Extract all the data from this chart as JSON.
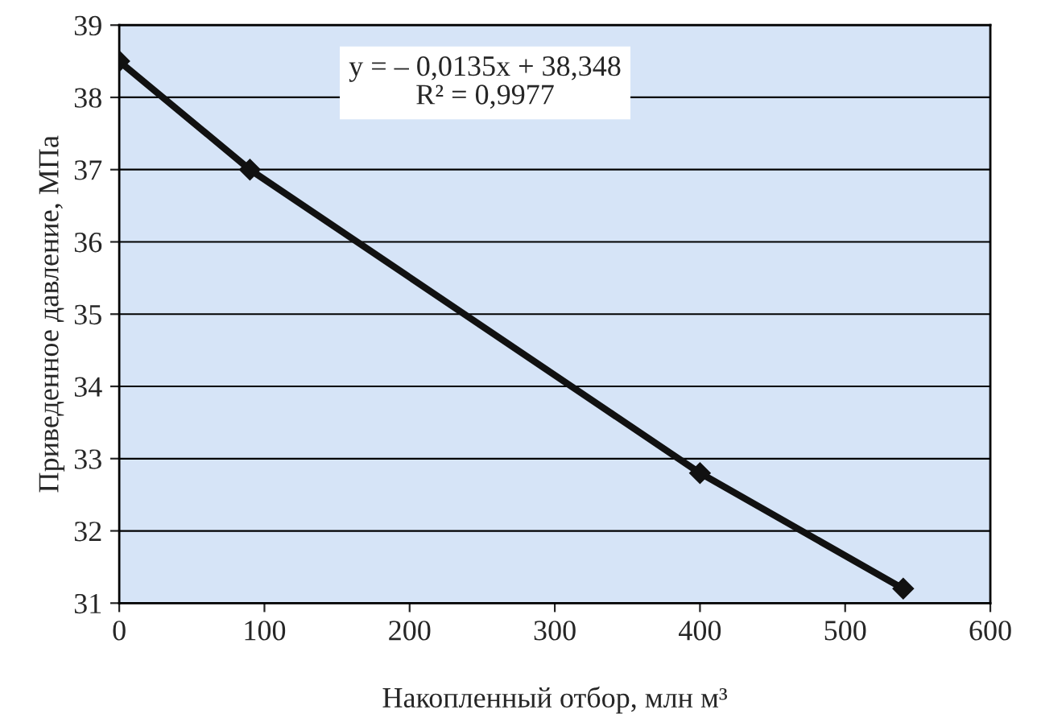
{
  "chart_data": {
    "type": "line",
    "xlabel": "Накопленный отбор, млн м³",
    "ylabel": "Приведенное давление, МПа",
    "annotations": [
      "y = – 0,0135x + 38,348\nR² = 0,9977"
    ],
    "x": [
      0,
      90,
      400,
      540
    ],
    "series": [
      {
        "color": "#111111",
        "values": [
          38.5,
          37.0,
          32.8,
          31.2
        ]
      }
    ],
    "xlim": [
      0,
      600
    ],
    "xticks": [
      0,
      100,
      200,
      300,
      400,
      500,
      600
    ],
    "ylim": [
      31,
      39
    ],
    "yticks": [
      31,
      32,
      33,
      34,
      35,
      36,
      37,
      38,
      39
    ],
    "grid": "y",
    "marker": "diamond",
    "line_style": "solid"
  }
}
